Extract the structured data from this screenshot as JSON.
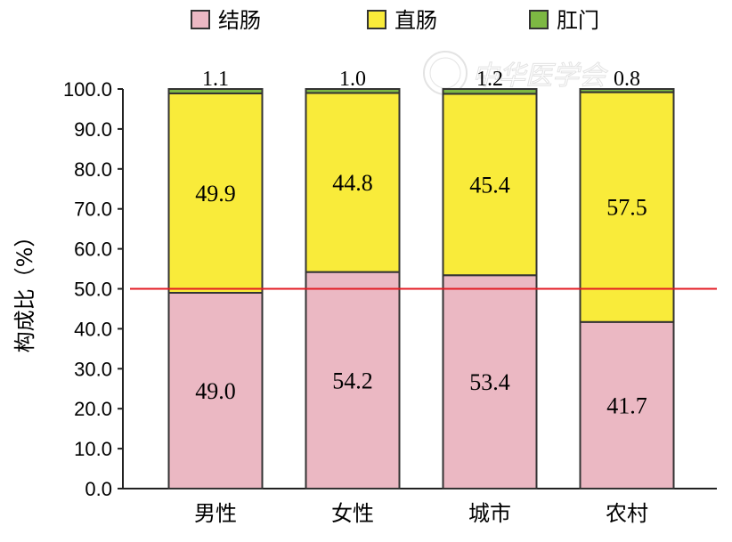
{
  "chart_data": {
    "type": "bar",
    "stacked": true,
    "categories": [
      "男性",
      "女性",
      "城市",
      "农村"
    ],
    "series": [
      {
        "name": "结肠",
        "values": [
          49.0,
          54.2,
          53.4,
          41.7
        ],
        "color": "#ebb8c3"
      },
      {
        "name": "直肠",
        "values": [
          49.9,
          44.8,
          45.4,
          57.5
        ],
        "color": "#f9eb3a"
      },
      {
        "name": "肛门",
        "values": [
          1.1,
          1.0,
          1.2,
          0.8
        ],
        "color": "#7db843"
      }
    ],
    "top_labels": [
      "1.1",
      "1.0",
      "1.2",
      "0.8"
    ],
    "middle_labels": [
      "49.9",
      "44.8",
      "45.4",
      "57.5"
    ],
    "bottom_labels": [
      "49.0",
      "54.2",
      "53.4",
      "41.7"
    ],
    "xlabel": "",
    "ylabel": "构成比（%）",
    "ylim": [
      0,
      100
    ],
    "yticks": [
      "0.0",
      "10.0",
      "20.0",
      "30.0",
      "40.0",
      "50.0",
      "60.0",
      "70.0",
      "80.0",
      "90.0",
      "100.0"
    ],
    "reference_line": {
      "value": 50,
      "color": "#e31b23"
    },
    "legend_position": "top",
    "grid": false,
    "watermark": "中华医学会"
  }
}
